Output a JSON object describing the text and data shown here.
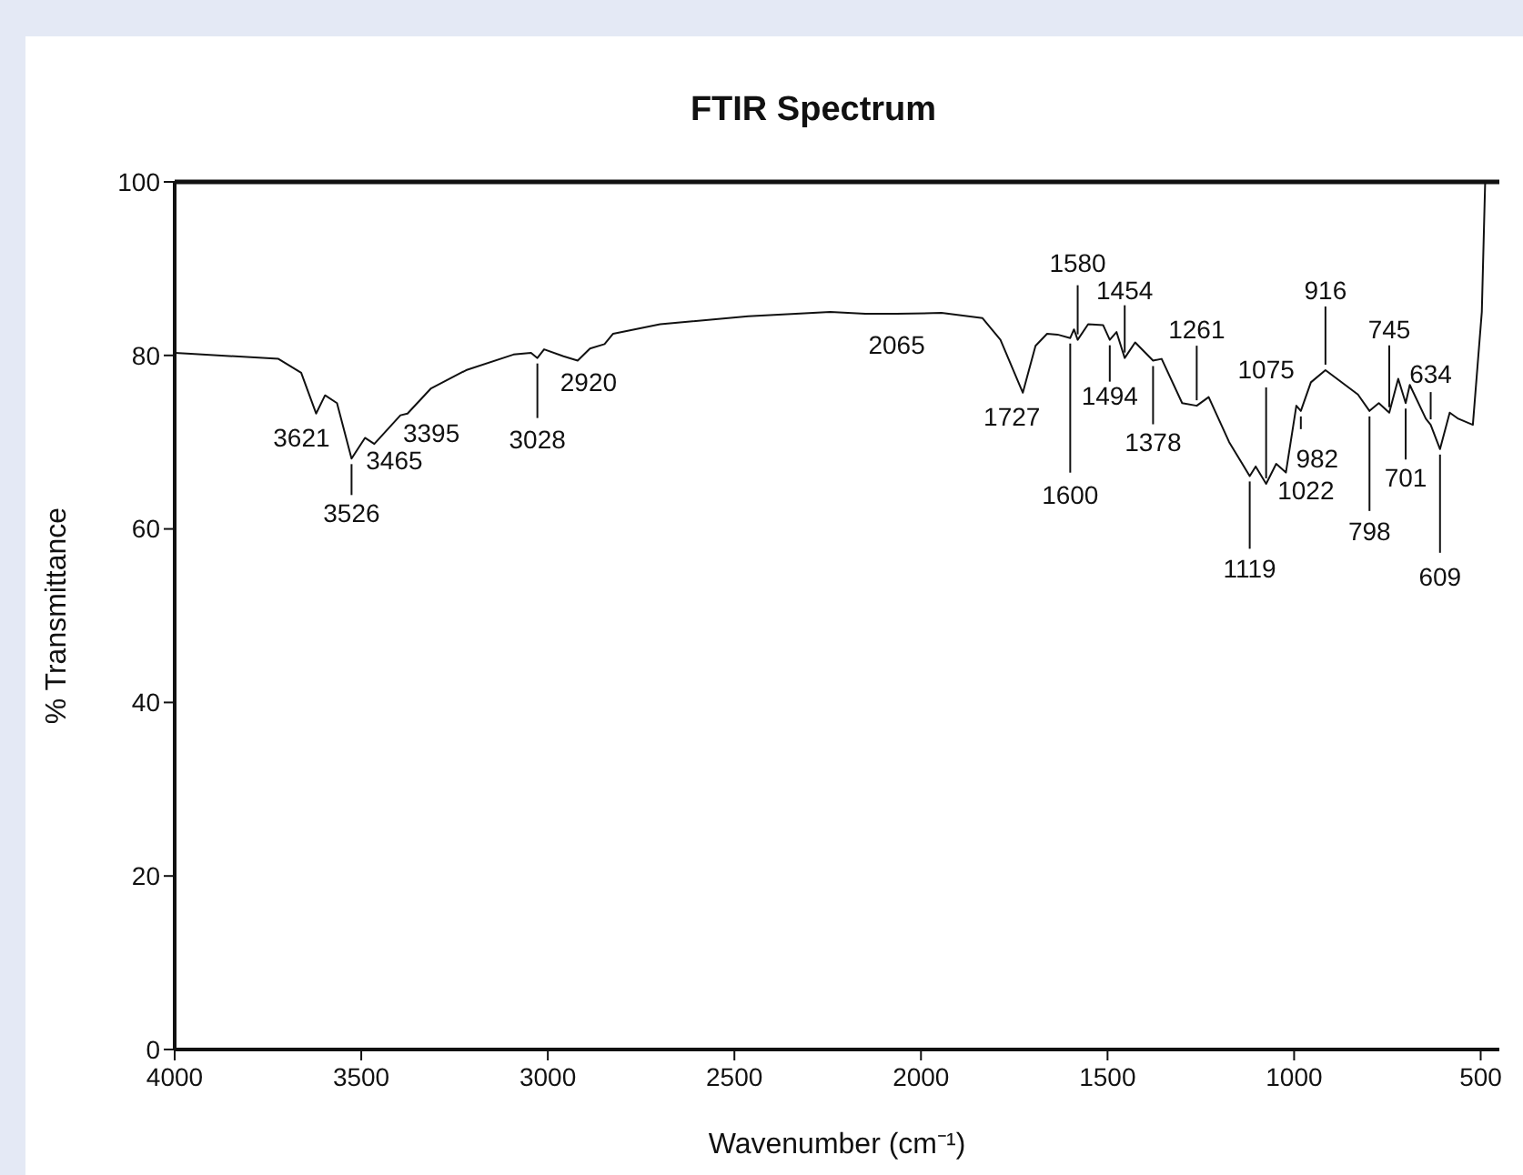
{
  "chart_data": {
    "type": "line",
    "title": "FTIR Spectrum",
    "xlabel": "Wavenumber (cm⁻¹)",
    "ylabel": "% Transmittance",
    "xlim": [
      4000,
      450
    ],
    "xticks": [
      4000,
      3500,
      3000,
      2500,
      2000,
      1500,
      1000,
      500
    ],
    "ylim": [
      0,
      100
    ],
    "yticks": [
      0,
      20,
      40,
      60,
      80,
      100
    ],
    "grid": false,
    "marker": "none",
    "line_style": "solid",
    "series": [
      {
        "color": "#111111",
        "x": [
          4000,
          3957,
          3722,
          3661,
          3621,
          3597,
          3565,
          3526,
          3490,
          3465,
          3395,
          3376,
          3313,
          3219,
          3092,
          3045,
          3028,
          3010,
          2958,
          2920,
          2887,
          2848,
          2825,
          2699,
          2463,
          2243,
          2149,
          2065,
          1945,
          1835,
          1787,
          1727,
          1693,
          1662,
          1634,
          1600,
          1590,
          1580,
          1552,
          1512,
          1494,
          1476,
          1454,
          1426,
          1378,
          1355,
          1300,
          1261,
          1229,
          1174,
          1119,
          1103,
          1075,
          1048,
          1022,
          994,
          982,
          955,
          916,
          829,
          798,
          773,
          745,
          721,
          701,
          690,
          647,
          634,
          609,
          583,
          560,
          521,
          497,
          488
        ],
        "values": [
          80.3,
          80.2,
          79.6,
          78.0,
          73.3,
          75.4,
          74.5,
          68.1,
          70.5,
          69.8,
          73.1,
          73.3,
          76.2,
          78.3,
          80.1,
          80.3,
          79.7,
          80.7,
          79.9,
          79.4,
          80.8,
          81.3,
          82.5,
          83.6,
          84.5,
          85.0,
          84.8,
          84.8,
          84.9,
          84.3,
          81.8,
          75.7,
          81.1,
          82.5,
          82.4,
          82.0,
          83.0,
          81.8,
          83.6,
          83.5,
          81.8,
          82.7,
          79.7,
          81.5,
          79.4,
          79.6,
          74.5,
          74.2,
          75.2,
          70.0,
          66.1,
          67.2,
          65.2,
          67.5,
          66.5,
          74.2,
          73.6,
          76.9,
          78.3,
          75.5,
          73.6,
          74.5,
          73.4,
          77.3,
          74.5,
          76.6,
          72.7,
          72.0,
          69.2,
          73.4,
          72.7,
          72.0,
          85.0,
          100
        ]
      }
    ],
    "annotations": [
      {
        "text": "3621",
        "x": 3621,
        "y": 73.3
      },
      {
        "text": "3526",
        "x": 3526,
        "y": 68.1
      },
      {
        "text": "3465",
        "x": 3465,
        "y": 69.8
      },
      {
        "text": "3395",
        "x": 3395,
        "y": 73.1
      },
      {
        "text": "3028",
        "x": 3028,
        "y": 79.7
      },
      {
        "text": "2920",
        "x": 2920,
        "y": 79.4
      },
      {
        "text": "2065",
        "x": 2065,
        "y": 84.8
      },
      {
        "text": "1727",
        "x": 1727,
        "y": 75.7
      },
      {
        "text": "1600",
        "x": 1600,
        "y": 82.0
      },
      {
        "text": "1580",
        "x": 1580,
        "y": 81.8
      },
      {
        "text": "1494",
        "x": 1494,
        "y": 81.8
      },
      {
        "text": "1454",
        "x": 1454,
        "y": 79.7
      },
      {
        "text": "1378",
        "x": 1378,
        "y": 79.4
      },
      {
        "text": "1261",
        "x": 1261,
        "y": 74.2
      },
      {
        "text": "1119",
        "x": 1119,
        "y": 66.1
      },
      {
        "text": "1075",
        "x": 1075,
        "y": 65.2
      },
      {
        "text": "1022",
        "x": 1022,
        "y": 66.5
      },
      {
        "text": "982",
        "x": 982,
        "y": 73.6
      },
      {
        "text": "916",
        "x": 916,
        "y": 78.3
      },
      {
        "text": "798",
        "x": 798,
        "y": 73.6
      },
      {
        "text": "745",
        "x": 745,
        "y": 73.4
      },
      {
        "text": "701",
        "x": 701,
        "y": 74.5
      },
      {
        "text": "634",
        "x": 634,
        "y": 72.0
      },
      {
        "text": "609",
        "x": 609,
        "y": 69.2
      }
    ]
  }
}
